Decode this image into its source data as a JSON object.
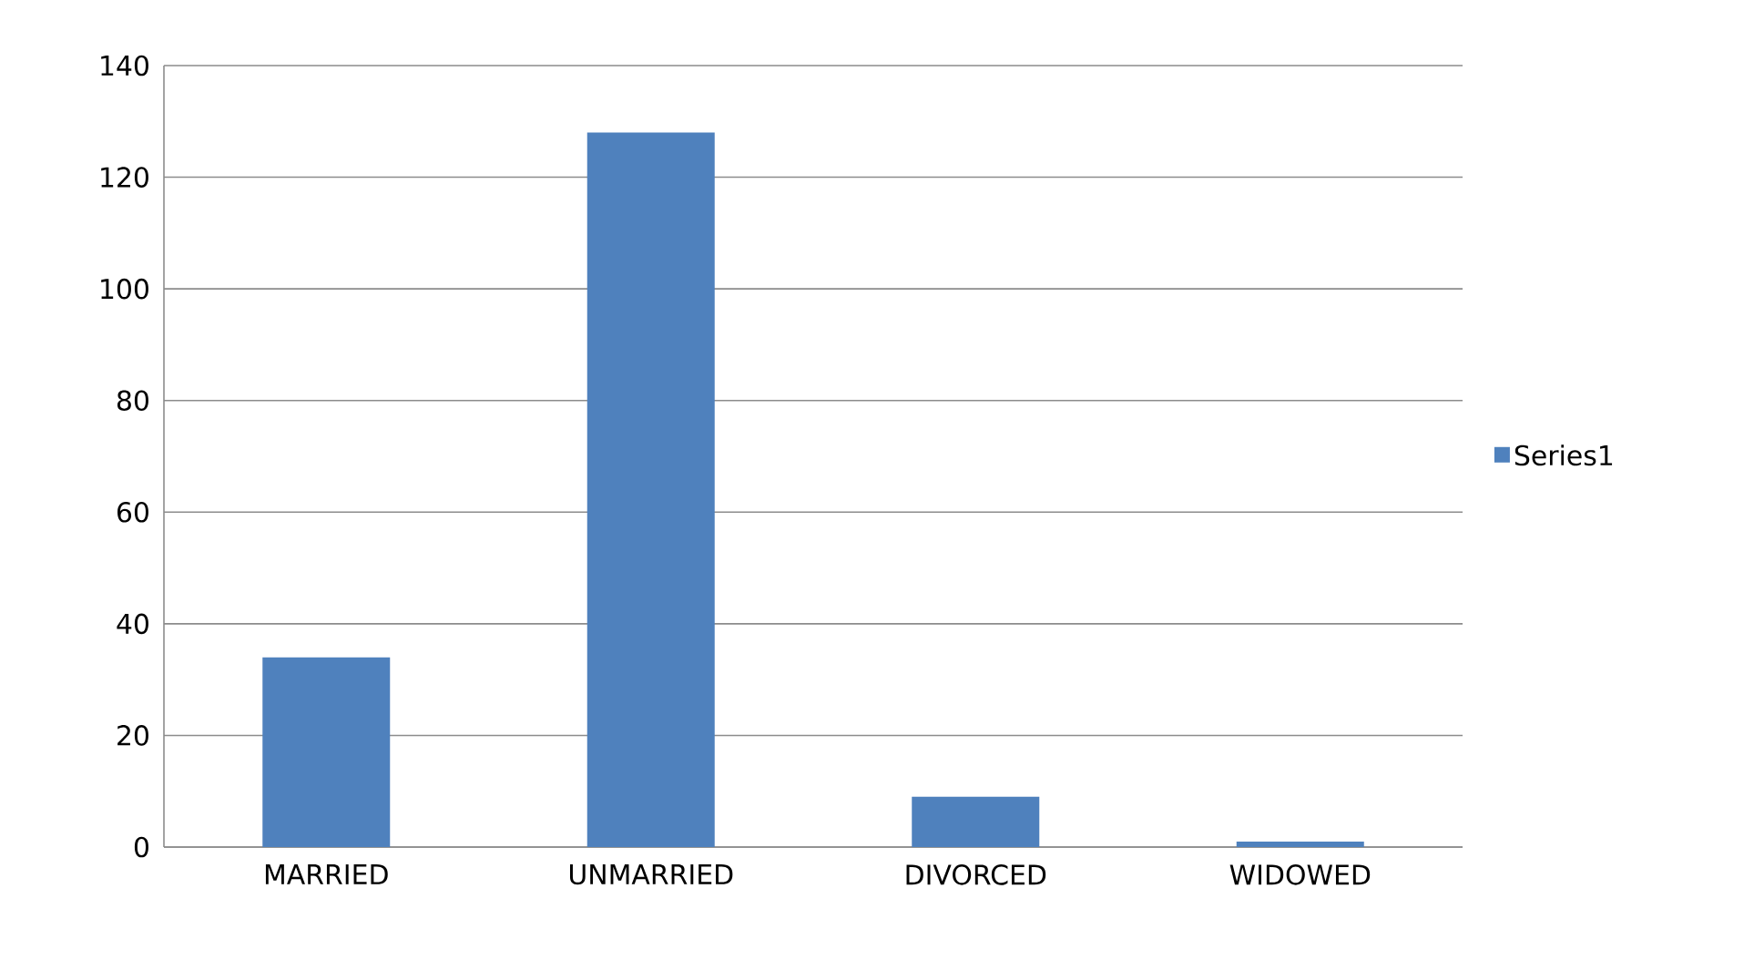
{
  "chart_data": {
    "type": "bar",
    "categories": [
      "MARRIED",
      "UNMARRIED",
      "DIVORCED",
      "WIDOWED"
    ],
    "series": [
      {
        "name": "Series1",
        "color": "#4f81bd",
        "values": [
          34,
          128,
          9,
          1
        ]
      }
    ],
    "ylim": [
      0,
      140
    ],
    "yticks": [
      0,
      20,
      40,
      60,
      80,
      100,
      120,
      140
    ],
    "grid": "y",
    "legend": "right"
  }
}
